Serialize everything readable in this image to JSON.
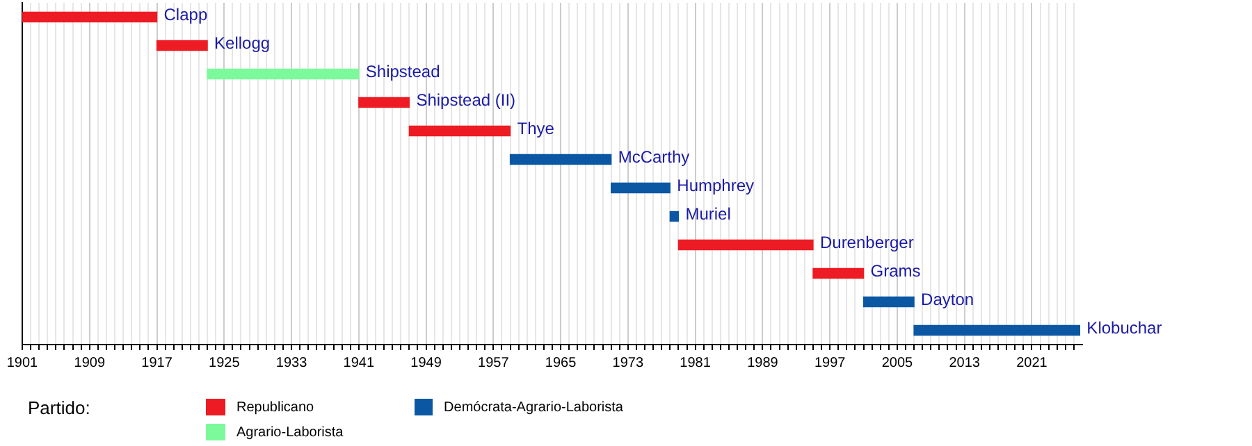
{
  "chart_data": {
    "type": "bar",
    "orientation": "horizontal",
    "legend_title": "Partido:",
    "legend": "bottom",
    "grid": "x",
    "tick_labels": "x",
    "categories": [
      "Clapp",
      "Kellogg",
      "Shipstead",
      "Shipstead (II)",
      "Thye",
      "McCarthy",
      "Humphrey",
      "Muriel",
      "Durenberger",
      "Grams",
      "Dayton",
      "Klobuchar"
    ],
    "series": [
      {
        "name": "Republicano",
        "color": "#ed1c24",
        "base": [
          1901,
          1917,
          null,
          1941,
          1947,
          null,
          null,
          null,
          1979,
          1995,
          null,
          null
        ],
        "values": [
          16,
          6,
          null,
          6,
          12,
          null,
          null,
          null,
          16,
          6,
          null,
          null
        ]
      },
      {
        "name": "Agrario-Laborista",
        "color": "#7cf99a",
        "base": [
          null,
          null,
          1923,
          null,
          null,
          null,
          null,
          null,
          null,
          null,
          null,
          null
        ],
        "values": [
          null,
          null,
          18,
          null,
          null,
          null,
          null,
          null,
          null,
          null,
          null,
          null
        ]
      },
      {
        "name": "Demócrata-Agrario-Laborista",
        "color": "#0b57a4",
        "base": [
          null,
          null,
          null,
          null,
          null,
          1959,
          1971,
          1978,
          null,
          null,
          2001,
          2007
        ],
        "values": [
          null,
          null,
          null,
          null,
          null,
          12,
          7,
          1,
          null,
          null,
          6,
          19.7
        ]
      }
    ],
    "xlim": [
      1901,
      2027
    ],
    "xticks": [
      1901,
      {
        "value": 1902,
        "label": null
      },
      {
        "value": 1903,
        "label": null
      },
      {
        "value": 1904,
        "label": null
      },
      {
        "value": 1905,
        "label": null
      },
      {
        "value": 1906,
        "label": null
      },
      {
        "value": 1907,
        "label": null
      },
      {
        "value": 1908,
        "label": null
      },
      1909,
      {
        "value": 1910,
        "label": null
      },
      {
        "value": 1911,
        "label": null
      },
      {
        "value": 1912,
        "label": null
      },
      {
        "value": 1913,
        "label": null
      },
      {
        "value": 1914,
        "label": null
      },
      {
        "value": 1915,
        "label": null
      },
      {
        "value": 1916,
        "label": null
      },
      1917,
      {
        "value": 1918,
        "label": null
      },
      {
        "value": 1919,
        "label": null
      },
      {
        "value": 1920,
        "label": null
      },
      {
        "value": 1921,
        "label": null
      },
      {
        "value": 1922,
        "label": null
      },
      {
        "value": 1923,
        "label": null
      },
      {
        "value": 1924,
        "label": null
      },
      1925,
      {
        "value": 1926,
        "label": null
      },
      {
        "value": 1927,
        "label": null
      },
      {
        "value": 1928,
        "label": null
      },
      {
        "value": 1929,
        "label": null
      },
      {
        "value": 1930,
        "label": null
      },
      {
        "value": 1931,
        "label": null
      },
      {
        "value": 1932,
        "label": null
      },
      1933,
      {
        "value": 1934,
        "label": null
      },
      {
        "value": 1935,
        "label": null
      },
      {
        "value": 1936,
        "label": null
      },
      {
        "value": 1937,
        "label": null
      },
      {
        "value": 1938,
        "label": null
      },
      {
        "value": 1939,
        "label": null
      },
      {
        "value": 1940,
        "label": null
      },
      1941,
      {
        "value": 1942,
        "label": null
      },
      {
        "value": 1943,
        "label": null
      },
      {
        "value": 1944,
        "label": null
      },
      {
        "value": 1945,
        "label": null
      },
      {
        "value": 1946,
        "label": null
      },
      {
        "value": 1947,
        "label": null
      },
      {
        "value": 1948,
        "label": null
      },
      1949,
      {
        "value": 1950,
        "label": null
      },
      {
        "value": 1951,
        "label": null
      },
      {
        "value": 1952,
        "label": null
      },
      {
        "value": 1953,
        "label": null
      },
      {
        "value": 1954,
        "label": null
      },
      {
        "value": 1955,
        "label": null
      },
      {
        "value": 1956,
        "label": null
      },
      1957,
      {
        "value": 1958,
        "label": null
      },
      {
        "value": 1959,
        "label": null
      },
      {
        "value": 1960,
        "label": null
      },
      {
        "value": 1961,
        "label": null
      },
      {
        "value": 1962,
        "label": null
      },
      {
        "value": 1963,
        "label": null
      },
      {
        "value": 1964,
        "label": null
      },
      1965,
      {
        "value": 1966,
        "label": null
      },
      {
        "value": 1967,
        "label": null
      },
      {
        "value": 1968,
        "label": null
      },
      {
        "value": 1969,
        "label": null
      },
      {
        "value": 1970,
        "label": null
      },
      {
        "value": 1971,
        "label": null
      },
      {
        "value": 1972,
        "label": null
      },
      1973,
      {
        "value": 1974,
        "label": null
      },
      {
        "value": 1975,
        "label": null
      },
      {
        "value": 1976,
        "label": null
      },
      {
        "value": 1977,
        "label": null
      },
      {
        "value": 1978,
        "label": null
      },
      {
        "value": 1979,
        "label": null
      },
      {
        "value": 1980,
        "label": null
      },
      1981,
      {
        "value": 1982,
        "label": null
      },
      {
        "value": 1983,
        "label": null
      },
      {
        "value": 1984,
        "label": null
      },
      {
        "value": 1985,
        "label": null
      },
      {
        "value": 1986,
        "label": null
      },
      {
        "value": 1987,
        "label": null
      },
      {
        "value": 1988,
        "label": null
      },
      1989,
      {
        "value": 1990,
        "label": null
      },
      {
        "value": 1991,
        "label": null
      },
      {
        "value": 1992,
        "label": null
      },
      {
        "value": 1993,
        "label": null
      },
      {
        "value": 1994,
        "label": null
      },
      {
        "value": 1995,
        "label": null
      },
      {
        "value": 1996,
        "label": null
      },
      1997,
      {
        "value": 1998,
        "label": null
      },
      {
        "value": 1999,
        "label": null
      },
      {
        "value": 2000,
        "label": null
      },
      {
        "value": 2001,
        "label": null
      },
      {
        "value": 2002,
        "label": null
      },
      {
        "value": 2003,
        "label": null
      },
      {
        "value": 2004,
        "label": null
      },
      2005,
      {
        "value": 2006,
        "label": null
      },
      {
        "value": 2007,
        "label": null
      },
      {
        "value": 2008,
        "label": null
      },
      {
        "value": 2009,
        "label": null
      },
      {
        "value": 2010,
        "label": null
      },
      {
        "value": 2011,
        "label": null
      },
      {
        "value": 2012,
        "label": null
      },
      2013,
      {
        "value": 2014,
        "label": null
      },
      {
        "value": 2015,
        "label": null
      },
      {
        "value": 2016,
        "label": null
      },
      {
        "value": 2017,
        "label": null
      },
      {
        "value": 2018,
        "label": null
      },
      {
        "value": 2019,
        "label": null
      },
      {
        "value": 2020,
        "label": null
      },
      2021,
      {
        "value": 2022,
        "label": null
      },
      {
        "value": 2023,
        "label": null
      },
      {
        "value": 2024,
        "label": null
      },
      {
        "value": 2025,
        "label": null
      },
      {
        "value": 2026,
        "label": null
      }
    ]
  }
}
